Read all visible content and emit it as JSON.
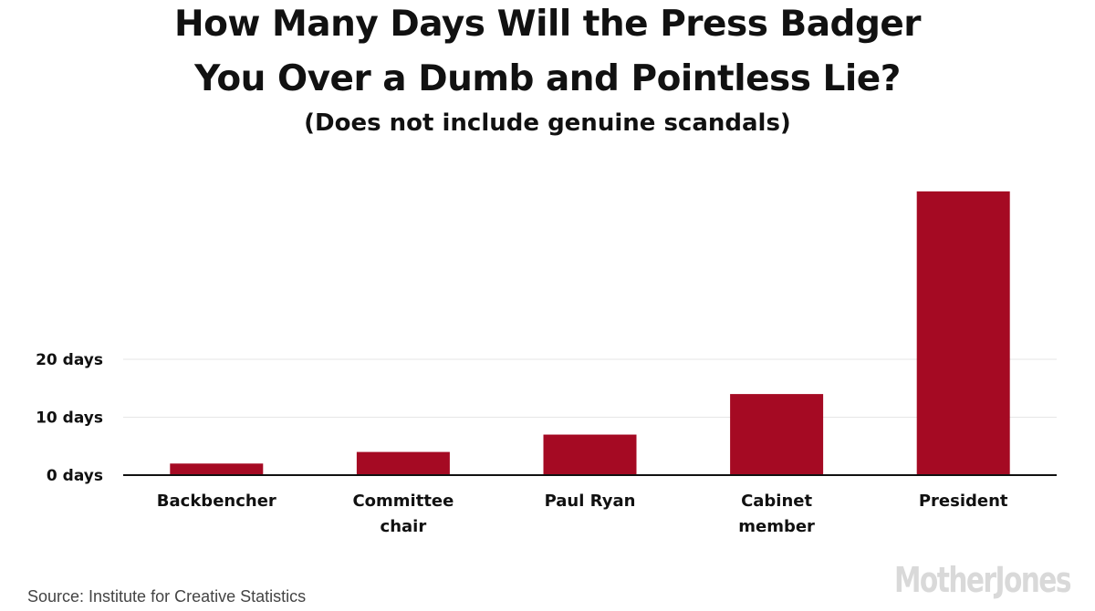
{
  "chart_data": {
    "type": "bar",
    "title_line1": "How Many Days Will the Press Badger",
    "title_line2": "You Over a Dumb and Pointless Lie?",
    "subtitle": "(Does not include genuine scandals)",
    "xlabel": "",
    "ylabel": "",
    "categories": [
      [
        "Backbencher"
      ],
      [
        "Committee",
        "chair"
      ],
      [
        "Paul Ryan"
      ],
      [
        "Cabinet",
        "member"
      ],
      [
        "President"
      ]
    ],
    "values": [
      2,
      4,
      7,
      14,
      49
    ],
    "ylim": [
      0,
      50
    ],
    "yticks": [
      0,
      10,
      20
    ],
    "ytick_labels": [
      "0 days",
      "10 days",
      "20 days"
    ],
    "grid": true,
    "bar_color": "#a50a23",
    "source": "Source: Institute for Creative Statistics",
    "logo_text": "MotherJones"
  }
}
